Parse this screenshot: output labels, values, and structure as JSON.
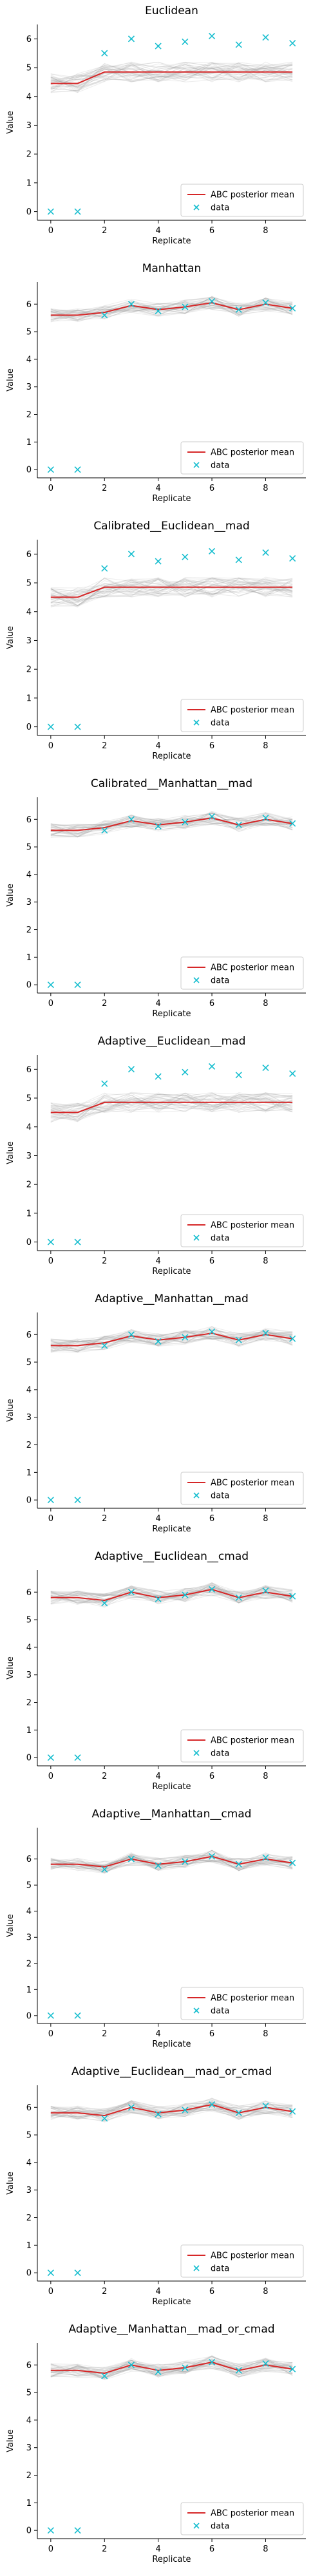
{
  "figure": {
    "x_ticks": [
      0,
      2,
      4,
      6,
      8
    ],
    "y_ticks": [
      0,
      1,
      2,
      3,
      4,
      5,
      6
    ]
  },
  "chart_data": [
    {
      "type": "line",
      "title": "Euclidean",
      "xlabel": "Replicate",
      "ylabel": "Value",
      "xlim": [
        -0.5,
        9.5
      ],
      "ylim": [
        -0.3,
        6.5
      ],
      "x": [
        0,
        1,
        2,
        3,
        4,
        5,
        6,
        7,
        8,
        9
      ],
      "series": [
        {
          "name": "ABC posterior mean",
          "values": [
            4.45,
            4.45,
            4.85,
            4.85,
            4.85,
            4.85,
            4.85,
            4.85,
            4.85,
            4.85
          ]
        },
        {
          "name": "data",
          "values": [
            0,
            0,
            5.5,
            6.0,
            5.75,
            5.9,
            6.1,
            5.8,
            6.05,
            5.85
          ]
        }
      ],
      "band_spread": 0.35,
      "legend": "lower-right"
    },
    {
      "type": "line",
      "title": "Manhattan",
      "xlabel": "Replicate",
      "ylabel": "Value",
      "xlim": [
        -0.5,
        9.5
      ],
      "ylim": [
        -0.3,
        6.8
      ],
      "x": [
        0,
        1,
        2,
        3,
        4,
        5,
        6,
        7,
        8,
        9
      ],
      "series": [
        {
          "name": "ABC posterior mean",
          "values": [
            5.6,
            5.6,
            5.7,
            5.95,
            5.8,
            5.9,
            6.05,
            5.8,
            6.0,
            5.85
          ]
        },
        {
          "name": "data",
          "values": [
            0,
            0,
            5.6,
            6.0,
            5.75,
            5.9,
            6.1,
            5.8,
            6.05,
            5.85
          ]
        }
      ],
      "band_spread": 0.25,
      "legend": "lower-right"
    },
    {
      "type": "line",
      "title": "Calibrated__Euclidean__mad",
      "xlabel": "Replicate",
      "ylabel": "Value",
      "xlim": [
        -0.5,
        9.5
      ],
      "ylim": [
        -0.3,
        6.5
      ],
      "x": [
        0,
        1,
        2,
        3,
        4,
        5,
        6,
        7,
        8,
        9
      ],
      "series": [
        {
          "name": "ABC posterior mean",
          "values": [
            4.5,
            4.5,
            4.85,
            4.85,
            4.85,
            4.85,
            4.85,
            4.85,
            4.85,
            4.85
          ]
        },
        {
          "name": "data",
          "values": [
            0,
            0,
            5.5,
            6.0,
            5.75,
            5.9,
            6.1,
            5.8,
            6.05,
            5.85
          ]
        }
      ],
      "band_spread": 0.35,
      "legend": "lower-right"
    },
    {
      "type": "line",
      "title": "Calibrated__Manhattan__mad",
      "xlabel": "Replicate",
      "ylabel": "Value",
      "xlim": [
        -0.5,
        9.5
      ],
      "ylim": [
        -0.3,
        6.8
      ],
      "x": [
        0,
        1,
        2,
        3,
        4,
        5,
        6,
        7,
        8,
        9
      ],
      "series": [
        {
          "name": "ABC posterior mean",
          "values": [
            5.6,
            5.6,
            5.7,
            5.95,
            5.8,
            5.9,
            6.05,
            5.8,
            6.0,
            5.85
          ]
        },
        {
          "name": "data",
          "values": [
            0,
            0,
            5.6,
            6.0,
            5.75,
            5.9,
            6.1,
            5.8,
            6.05,
            5.85
          ]
        }
      ],
      "band_spread": 0.25,
      "legend": "lower-right"
    },
    {
      "type": "line",
      "title": "Adaptive__Euclidean__mad",
      "xlabel": "Replicate",
      "ylabel": "Value",
      "xlim": [
        -0.5,
        9.5
      ],
      "ylim": [
        -0.3,
        6.5
      ],
      "x": [
        0,
        1,
        2,
        3,
        4,
        5,
        6,
        7,
        8,
        9
      ],
      "series": [
        {
          "name": "ABC posterior mean",
          "values": [
            4.5,
            4.5,
            4.85,
            4.85,
            4.85,
            4.85,
            4.85,
            4.85,
            4.85,
            4.85
          ]
        },
        {
          "name": "data",
          "values": [
            0,
            0,
            5.5,
            6.0,
            5.75,
            5.9,
            6.1,
            5.8,
            6.05,
            5.85
          ]
        }
      ],
      "band_spread": 0.35,
      "legend": "lower-right"
    },
    {
      "type": "line",
      "title": "Adaptive__Manhattan__mad",
      "xlabel": "Replicate",
      "ylabel": "Value",
      "xlim": [
        -0.5,
        9.5
      ],
      "ylim": [
        -0.3,
        6.8
      ],
      "x": [
        0,
        1,
        2,
        3,
        4,
        5,
        6,
        7,
        8,
        9
      ],
      "series": [
        {
          "name": "ABC posterior mean",
          "values": [
            5.6,
            5.6,
            5.7,
            5.95,
            5.8,
            5.9,
            6.05,
            5.8,
            6.0,
            5.85
          ]
        },
        {
          "name": "data",
          "values": [
            0,
            0,
            5.6,
            6.0,
            5.75,
            5.9,
            6.1,
            5.8,
            6.05,
            5.85
          ]
        }
      ],
      "band_spread": 0.25,
      "legend": "lower-right"
    },
    {
      "type": "line",
      "title": "Adaptive__Euclidean__cmad",
      "xlabel": "Replicate",
      "ylabel": "Value",
      "xlim": [
        -0.5,
        9.5
      ],
      "ylim": [
        -0.3,
        6.8
      ],
      "x": [
        0,
        1,
        2,
        3,
        4,
        5,
        6,
        7,
        8,
        9
      ],
      "series": [
        {
          "name": "ABC posterior mean",
          "values": [
            5.8,
            5.8,
            5.7,
            6.0,
            5.8,
            5.9,
            6.1,
            5.8,
            6.0,
            5.85
          ]
        },
        {
          "name": "data",
          "values": [
            0,
            0,
            5.6,
            6.0,
            5.75,
            5.9,
            6.1,
            5.8,
            6.05,
            5.85
          ]
        }
      ],
      "band_spread": 0.25,
      "legend": "lower-right"
    },
    {
      "type": "line",
      "title": "Adaptive__Manhattan__cmad",
      "xlabel": "Replicate",
      "ylabel": "Value",
      "xlim": [
        -0.5,
        9.5
      ],
      "ylim": [
        -0.3,
        7.2
      ],
      "x": [
        0,
        1,
        2,
        3,
        4,
        5,
        6,
        7,
        8,
        9
      ],
      "series": [
        {
          "name": "ABC posterior mean",
          "values": [
            5.8,
            5.8,
            5.7,
            6.0,
            5.8,
            5.9,
            6.1,
            5.8,
            6.0,
            5.85
          ]
        },
        {
          "name": "data",
          "values": [
            0,
            0,
            5.6,
            6.0,
            5.75,
            5.9,
            6.1,
            5.8,
            6.05,
            5.85
          ]
        }
      ],
      "band_spread": 0.25,
      "legend": "lower-right"
    },
    {
      "type": "line",
      "title": "Adaptive__Euclidean__mad_or_cmad",
      "xlabel": "Replicate",
      "ylabel": "Value",
      "xlim": [
        -0.5,
        9.5
      ],
      "ylim": [
        -0.3,
        6.8
      ],
      "x": [
        0,
        1,
        2,
        3,
        4,
        5,
        6,
        7,
        8,
        9
      ],
      "series": [
        {
          "name": "ABC posterior mean",
          "values": [
            5.8,
            5.8,
            5.7,
            6.0,
            5.8,
            5.9,
            6.1,
            5.8,
            6.0,
            5.85
          ]
        },
        {
          "name": "data",
          "values": [
            0,
            0,
            5.6,
            6.0,
            5.75,
            5.9,
            6.1,
            5.8,
            6.05,
            5.85
          ]
        }
      ],
      "band_spread": 0.25,
      "legend": "lower-right"
    },
    {
      "type": "line",
      "title": "Adaptive__Manhattan__mad_or_cmad",
      "xlabel": "Replicate",
      "ylabel": "Value",
      "xlim": [
        -0.5,
        9.5
      ],
      "ylim": [
        -0.3,
        6.8
      ],
      "x": [
        0,
        1,
        2,
        3,
        4,
        5,
        6,
        7,
        8,
        9
      ],
      "series": [
        {
          "name": "ABC posterior mean",
          "values": [
            5.8,
            5.8,
            5.7,
            6.0,
            5.8,
            5.9,
            6.1,
            5.8,
            6.0,
            5.85
          ]
        },
        {
          "name": "data",
          "values": [
            0,
            0,
            5.6,
            6.0,
            5.75,
            5.9,
            6.1,
            5.8,
            6.05,
            5.85
          ]
        }
      ],
      "band_spread": 0.25,
      "legend": "lower-right"
    }
  ]
}
